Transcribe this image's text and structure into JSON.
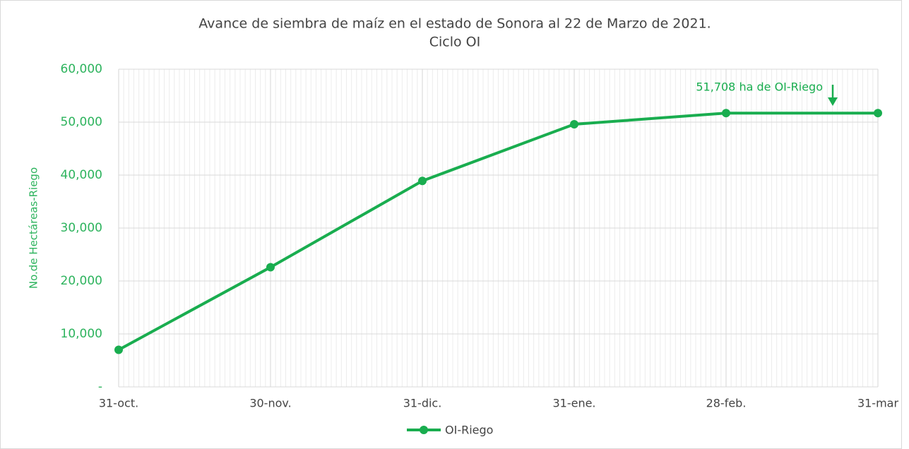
{
  "chart_data": {
    "type": "line",
    "title": "Avance de siembra de maíz en el estado de Sonora al 22 de Marzo de 2021.",
    "subtitle": "Ciclo OI",
    "y_label": "No.de Hectáreas-Riego",
    "categories": [
      "31-oct.",
      "30-nov.",
      "31-dic.",
      "31-ene.",
      "28-feb.",
      "31-mar"
    ],
    "series": [
      {
        "name": "OI-Riego",
        "color": "#19ad4f",
        "values": [
          7000,
          22600,
          38900,
          49600,
          51708,
          51708
        ]
      }
    ],
    "ylim": [
      0,
      60000
    ],
    "yticks": [
      {
        "value": 0,
        "label": "-"
      },
      {
        "value": 10000,
        "label": "10,000"
      },
      {
        "value": 20000,
        "label": "20,000"
      },
      {
        "value": 30000,
        "label": "30,000"
      },
      {
        "value": 40000,
        "label": "40,000"
      },
      {
        "value": 50000,
        "label": "50,000"
      },
      {
        "value": 60000,
        "label": "60,000"
      }
    ],
    "grid": true,
    "legend": "bottom",
    "annotation": "51,708 ha de OI-Riego"
  }
}
